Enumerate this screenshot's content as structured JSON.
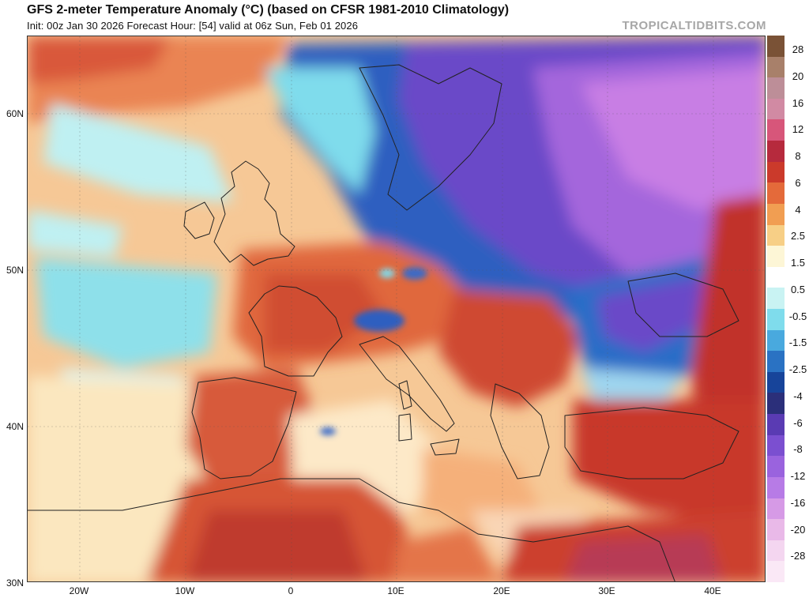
{
  "header": {
    "title": "GFS 2-meter Temperature Anomaly (°C) (based on CFSR 1981-2010 Climatology)",
    "subtitle": "Init: 00z Jan 30 2026   Forecast Hour: [54]   valid at 06z Sun, Feb 01 2026",
    "brand": "TROPICALTIDBITS.COM"
  },
  "axes": {
    "lat_labels": [
      "60N",
      "50N",
      "40N",
      "30N"
    ],
    "lon_labels": [
      "20W",
      "10W",
      "0",
      "10E",
      "20E",
      "30E",
      "40E"
    ]
  },
  "colorbar": {
    "labels": [
      "28",
      "20",
      "16",
      "12",
      "8",
      "6",
      "4",
      "2.5",
      "1.5",
      "0.5",
      "-0.5",
      "-1.5",
      "-2.5",
      "-4",
      "-6",
      "-8",
      "-12",
      "-16",
      "-20",
      "-28"
    ],
    "colors": [
      "#7a5236",
      "#a8806a",
      "#bd8e98",
      "#d18aa3",
      "#d7567a",
      "#b62a3d",
      "#cb3a2b",
      "#e46a3a",
      "#f19e52",
      "#f7cf86",
      "#fdf6d6",
      "#ffffff",
      "#c9f3f3",
      "#7fdcec",
      "#49a9de",
      "#2a72c3",
      "#17449a",
      "#2b2f7a",
      "#5a3bb3",
      "#7b4fd0",
      "#9a63de",
      "#b77be6",
      "#d69ae6",
      "#e9b9e8",
      "#f4d6f0",
      "#fae8f6"
    ]
  },
  "map": {
    "region": "Europe, North Africa and the Middle East",
    "colors": {
      "warm_strong": "#c1332a",
      "warm": "#e0683e",
      "warm_light": "#f2a66a",
      "neutral": "#fbe2b0",
      "cool": "#7fdcec",
      "cold": "#2f5fc0",
      "very_cold": "#6a48c8",
      "extreme_cold": "#a466dc"
    }
  }
}
